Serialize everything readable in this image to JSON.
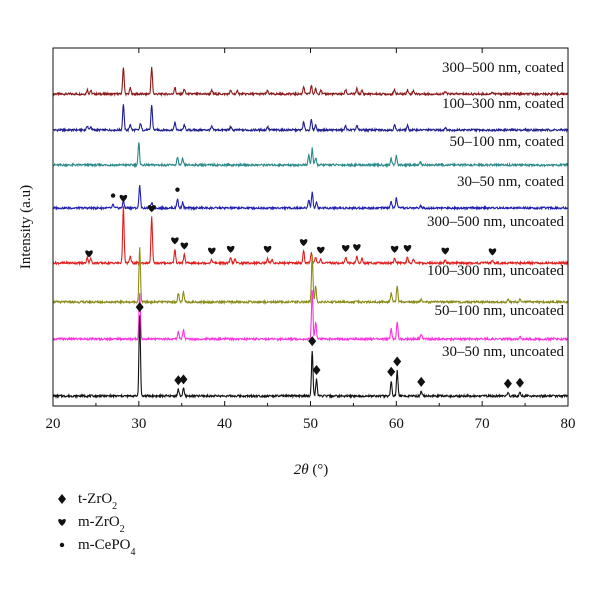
{
  "chart_data": {
    "type": "line",
    "title": "",
    "xlabel_symbol": "2θ",
    "xlabel_unit": "(°)",
    "ylabel": "Intensity (a.u)",
    "xlim": [
      20,
      80
    ],
    "x_ticks": [
      20,
      30,
      40,
      50,
      60,
      70,
      80
    ],
    "y_ticks": [],
    "grid": false,
    "legend_position": "bottom-left",
    "legend": [
      {
        "marker": "diamond",
        "base": "t-ZrO",
        "sub": "2"
      },
      {
        "marker": "heart",
        "base": "m-ZrO",
        "sub": "2"
      },
      {
        "marker": "dot",
        "base": "m-CePO",
        "sub": "4"
      }
    ],
    "series": [
      {
        "name": "300–500 nm, coated",
        "color": "#8b1a1a",
        "peaks": [
          [
            24.0,
            0.25
          ],
          [
            24.4,
            0.2
          ],
          [
            28.2,
            1.6
          ],
          [
            29.0,
            0.35
          ],
          [
            31.5,
            1.55
          ],
          [
            34.2,
            0.4
          ],
          [
            35.3,
            0.3
          ],
          [
            38.5,
            0.2
          ],
          [
            40.7,
            0.2
          ],
          [
            41.5,
            0.18
          ],
          [
            45.0,
            0.2
          ],
          [
            49.2,
            0.45
          ],
          [
            50.1,
            0.5
          ],
          [
            50.6,
            0.3
          ],
          [
            51.2,
            0.25
          ],
          [
            54.1,
            0.25
          ],
          [
            55.4,
            0.3
          ],
          [
            56.0,
            0.2
          ],
          [
            59.8,
            0.25
          ],
          [
            61.3,
            0.25
          ],
          [
            62.0,
            0.2
          ],
          [
            65.7,
            0.15
          ],
          [
            71.2,
            0.12
          ]
        ]
      },
      {
        "name": "100–300 nm, coated",
        "color": "#1e1e8f",
        "peaks": [
          [
            24.0,
            0.25
          ],
          [
            24.4,
            0.2
          ],
          [
            28.2,
            1.55
          ],
          [
            29.0,
            0.35
          ],
          [
            30.2,
            0.4
          ],
          [
            31.5,
            1.5
          ],
          [
            34.2,
            0.45
          ],
          [
            35.3,
            0.3
          ],
          [
            38.5,
            0.2
          ],
          [
            40.7,
            0.2
          ],
          [
            45.0,
            0.2
          ],
          [
            49.2,
            0.45
          ],
          [
            50.1,
            0.6
          ],
          [
            50.6,
            0.3
          ],
          [
            54.1,
            0.25
          ],
          [
            55.4,
            0.25
          ],
          [
            59.8,
            0.3
          ],
          [
            61.3,
            0.25
          ],
          [
            65.7,
            0.15
          ]
        ]
      },
      {
        "name": "50–100 nm, coated",
        "color": "#2a8a8a",
        "peaks": [
          [
            30.0,
            1.3
          ],
          [
            34.5,
            0.45
          ],
          [
            35.1,
            0.35
          ],
          [
            49.8,
            0.6
          ],
          [
            50.2,
            1.0
          ],
          [
            50.6,
            0.4
          ],
          [
            59.4,
            0.4
          ],
          [
            60.0,
            0.55
          ],
          [
            62.8,
            0.15
          ]
        ]
      },
      {
        "name": "30–50 nm, coated",
        "color": "#1f1fb0",
        "peaks": [
          [
            27.0,
            0.2
          ],
          [
            28.2,
            0.45
          ],
          [
            30.1,
            1.35
          ],
          [
            31.5,
            0.3
          ],
          [
            34.5,
            0.55
          ],
          [
            35.1,
            0.35
          ],
          [
            49.8,
            0.5
          ],
          [
            50.2,
            0.95
          ],
          [
            50.7,
            0.35
          ],
          [
            59.4,
            0.4
          ],
          [
            60.0,
            0.6
          ],
          [
            62.8,
            0.15
          ]
        ]
      },
      {
        "name": "300–500 nm, uncoated",
        "color": "#e02020",
        "peaks": [
          [
            24.0,
            0.35
          ],
          [
            24.4,
            0.25
          ],
          [
            28.2,
            3.3
          ],
          [
            29.0,
            0.4
          ],
          [
            31.5,
            2.7
          ],
          [
            34.2,
            0.8
          ],
          [
            35.3,
            0.5
          ],
          [
            38.5,
            0.2
          ],
          [
            40.7,
            0.3
          ],
          [
            41.2,
            0.2
          ],
          [
            45.0,
            0.3
          ],
          [
            45.5,
            0.2
          ],
          [
            49.2,
            0.7
          ],
          [
            50.1,
            0.6
          ],
          [
            50.6,
            0.35
          ],
          [
            51.2,
            0.25
          ],
          [
            54.1,
            0.35
          ],
          [
            55.4,
            0.4
          ],
          [
            56.0,
            0.25
          ],
          [
            59.8,
            0.3
          ],
          [
            61.3,
            0.35
          ],
          [
            62.0,
            0.25
          ],
          [
            65.7,
            0.2
          ],
          [
            71.2,
            0.15
          ]
        ]
      },
      {
        "name": "100–300 nm, uncoated",
        "color": "#8b8b1a",
        "peaks": [
          [
            30.1,
            3.2
          ],
          [
            34.6,
            0.5
          ],
          [
            35.2,
            0.55
          ],
          [
            50.2,
            2.8
          ],
          [
            50.6,
            0.9
          ],
          [
            59.4,
            0.55
          ],
          [
            60.1,
            0.9
          ],
          [
            62.9,
            0.2
          ],
          [
            73.0,
            0.15
          ],
          [
            74.4,
            0.2
          ]
        ]
      },
      {
        "name": "50–100 nm, uncoated",
        "color": "#ff33dd",
        "peaks": [
          [
            30.1,
            2.7
          ],
          [
            34.6,
            0.45
          ],
          [
            35.2,
            0.55
          ],
          [
            50.2,
            2.9
          ],
          [
            50.6,
            1.0
          ],
          [
            59.4,
            0.6
          ],
          [
            60.1,
            0.95
          ],
          [
            62.9,
            0.25
          ],
          [
            74.4,
            0.2
          ]
        ]
      },
      {
        "name": "30–50 nm, uncoated",
        "color": "#111111",
        "peaks": [
          [
            30.1,
            4.7
          ],
          [
            34.6,
            0.4
          ],
          [
            35.2,
            0.45
          ],
          [
            50.2,
            2.7
          ],
          [
            50.7,
            1.0
          ],
          [
            59.4,
            0.9
          ],
          [
            60.1,
            1.5
          ],
          [
            62.9,
            0.3
          ],
          [
            73.0,
            0.2
          ],
          [
            74.4,
            0.25
          ]
        ]
      }
    ],
    "annotations": [
      {
        "series": "30–50 nm, uncoated",
        "marker": "diamond",
        "x": [
          30.1,
          34.6,
          35.2,
          50.2,
          50.7,
          59.4,
          60.1,
          62.9,
          73.0,
          74.4
        ]
      },
      {
        "series": "300–500 nm, uncoated",
        "marker": "heart",
        "x": [
          24.2,
          28.2,
          31.5,
          34.2,
          35.3,
          38.5,
          40.7,
          45.0,
          49.2,
          51.2,
          54.1,
          55.4,
          59.8,
          61.3,
          65.7,
          71.2
        ]
      },
      {
        "series": "30–50 nm, coated",
        "marker": "dot",
        "x": [
          27.0,
          34.5
        ]
      }
    ]
  }
}
